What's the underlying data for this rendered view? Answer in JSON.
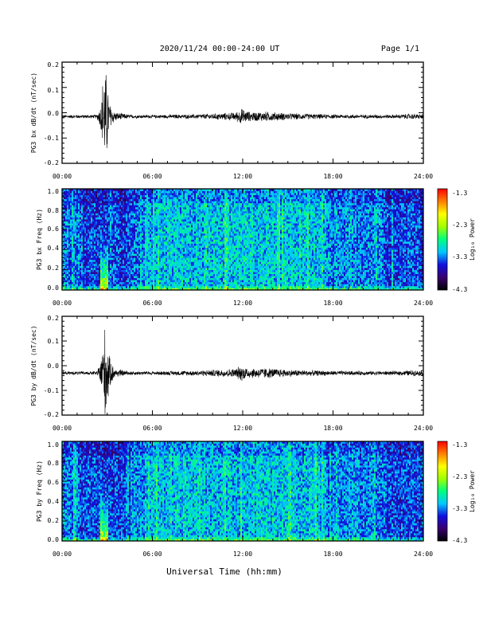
{
  "header": {
    "title": "2020/11/24  00:00-24:00 UT",
    "page": "Page 1/1"
  },
  "xlabel": "Universal Time (hh:mm)",
  "colors": {
    "line": "#000000",
    "frame": "#000000"
  },
  "colorscale": [
    "#000000",
    "#3a0070",
    "#1010e0",
    "#00c8ff",
    "#00ff80",
    "#a0ff00",
    "#ffff00",
    "#ff8000",
    "#ff0000"
  ],
  "chart_data": [
    {
      "type": "line",
      "name": "bx-waveform",
      "ylabel": "PG3 bx dB/dt (nT/sec)",
      "xlim": [
        0,
        24
      ],
      "ylim": [
        -0.2,
        0.2
      ],
      "xticks": [
        "00:00",
        "06:00",
        "12:00",
        "18:00",
        "24:00"
      ],
      "yticks": [
        "0.2",
        "0.1",
        "0.0",
        "-0.1",
        "-0.2"
      ],
      "baseline": -0.015,
      "envelope": [
        [
          0,
          0.007
        ],
        [
          2.3,
          0.008
        ],
        [
          2.55,
          0.05
        ],
        [
          2.75,
          0.2
        ],
        [
          2.95,
          0.2
        ],
        [
          3.15,
          0.06
        ],
        [
          3.5,
          0.02
        ],
        [
          4.5,
          0.008
        ],
        [
          6,
          0.007
        ],
        [
          9.0,
          0.01
        ],
        [
          11.5,
          0.018
        ],
        [
          11.9,
          0.035
        ],
        [
          12.5,
          0.02
        ],
        [
          13.5,
          0.022
        ],
        [
          15,
          0.015
        ],
        [
          18,
          0.009
        ],
        [
          22,
          0.008
        ],
        [
          23.2,
          0.012
        ],
        [
          24,
          0.01
        ]
      ]
    },
    {
      "type": "heatmap",
      "name": "bx-spectrogram",
      "ylabel": "PG3 bx Freq (Hz)",
      "xlim": [
        0,
        24
      ],
      "ylim": [
        0.0,
        1.0
      ],
      "xticks": [
        "00:00",
        "06:00",
        "12:00",
        "18:00",
        "24:00"
      ],
      "yticks": [
        "1.0",
        "0.8",
        "0.6",
        "0.4",
        "0.2",
        "0.0"
      ],
      "colorbar": {
        "label": "Log₁₀ Power",
        "ticks": [
          "-1.3",
          "-2.3",
          "-3.3",
          "-4.3"
        ],
        "range": [
          -4.3,
          -1.3
        ]
      }
    },
    {
      "type": "line",
      "name": "by-waveform",
      "ylabel": "PG3 by dB/dt (nT/sec)",
      "xlim": [
        0,
        24
      ],
      "ylim": [
        -0.2,
        0.2
      ],
      "xticks": [
        "00:00",
        "06:00",
        "12:00",
        "18:00",
        "24:00"
      ],
      "yticks": [
        "0.2",
        "0.1",
        "0.0",
        "-0.1",
        "-0.2"
      ],
      "baseline": -0.03,
      "envelope": [
        [
          0,
          0.007
        ],
        [
          2.3,
          0.008
        ],
        [
          2.55,
          0.05
        ],
        [
          2.75,
          0.2
        ],
        [
          2.95,
          0.2
        ],
        [
          3.15,
          0.07
        ],
        [
          3.5,
          0.02
        ],
        [
          4.5,
          0.009
        ],
        [
          6,
          0.008
        ],
        [
          9.0,
          0.012
        ],
        [
          11.5,
          0.02
        ],
        [
          11.9,
          0.035
        ],
        [
          12.5,
          0.022
        ],
        [
          13.5,
          0.024
        ],
        [
          15,
          0.016
        ],
        [
          18,
          0.01
        ],
        [
          22,
          0.009
        ],
        [
          23.2,
          0.013
        ],
        [
          24,
          0.011
        ]
      ]
    },
    {
      "type": "heatmap",
      "name": "by-spectrogram",
      "ylabel": "PG3 by Freq (Hz)",
      "xlim": [
        0,
        24
      ],
      "ylim": [
        0.0,
        1.0
      ],
      "xticks": [
        "00:00",
        "06:00",
        "12:00",
        "18:00",
        "24:00"
      ],
      "yticks": [
        "1.0",
        "0.8",
        "0.6",
        "0.4",
        "0.2",
        "0.0"
      ],
      "colorbar": {
        "label": "Log₁₀ Power",
        "ticks": [
          "-1.3",
          "-2.3",
          "-3.3",
          "-4.3"
        ],
        "range": [
          -4.3,
          -1.3
        ]
      }
    }
  ]
}
